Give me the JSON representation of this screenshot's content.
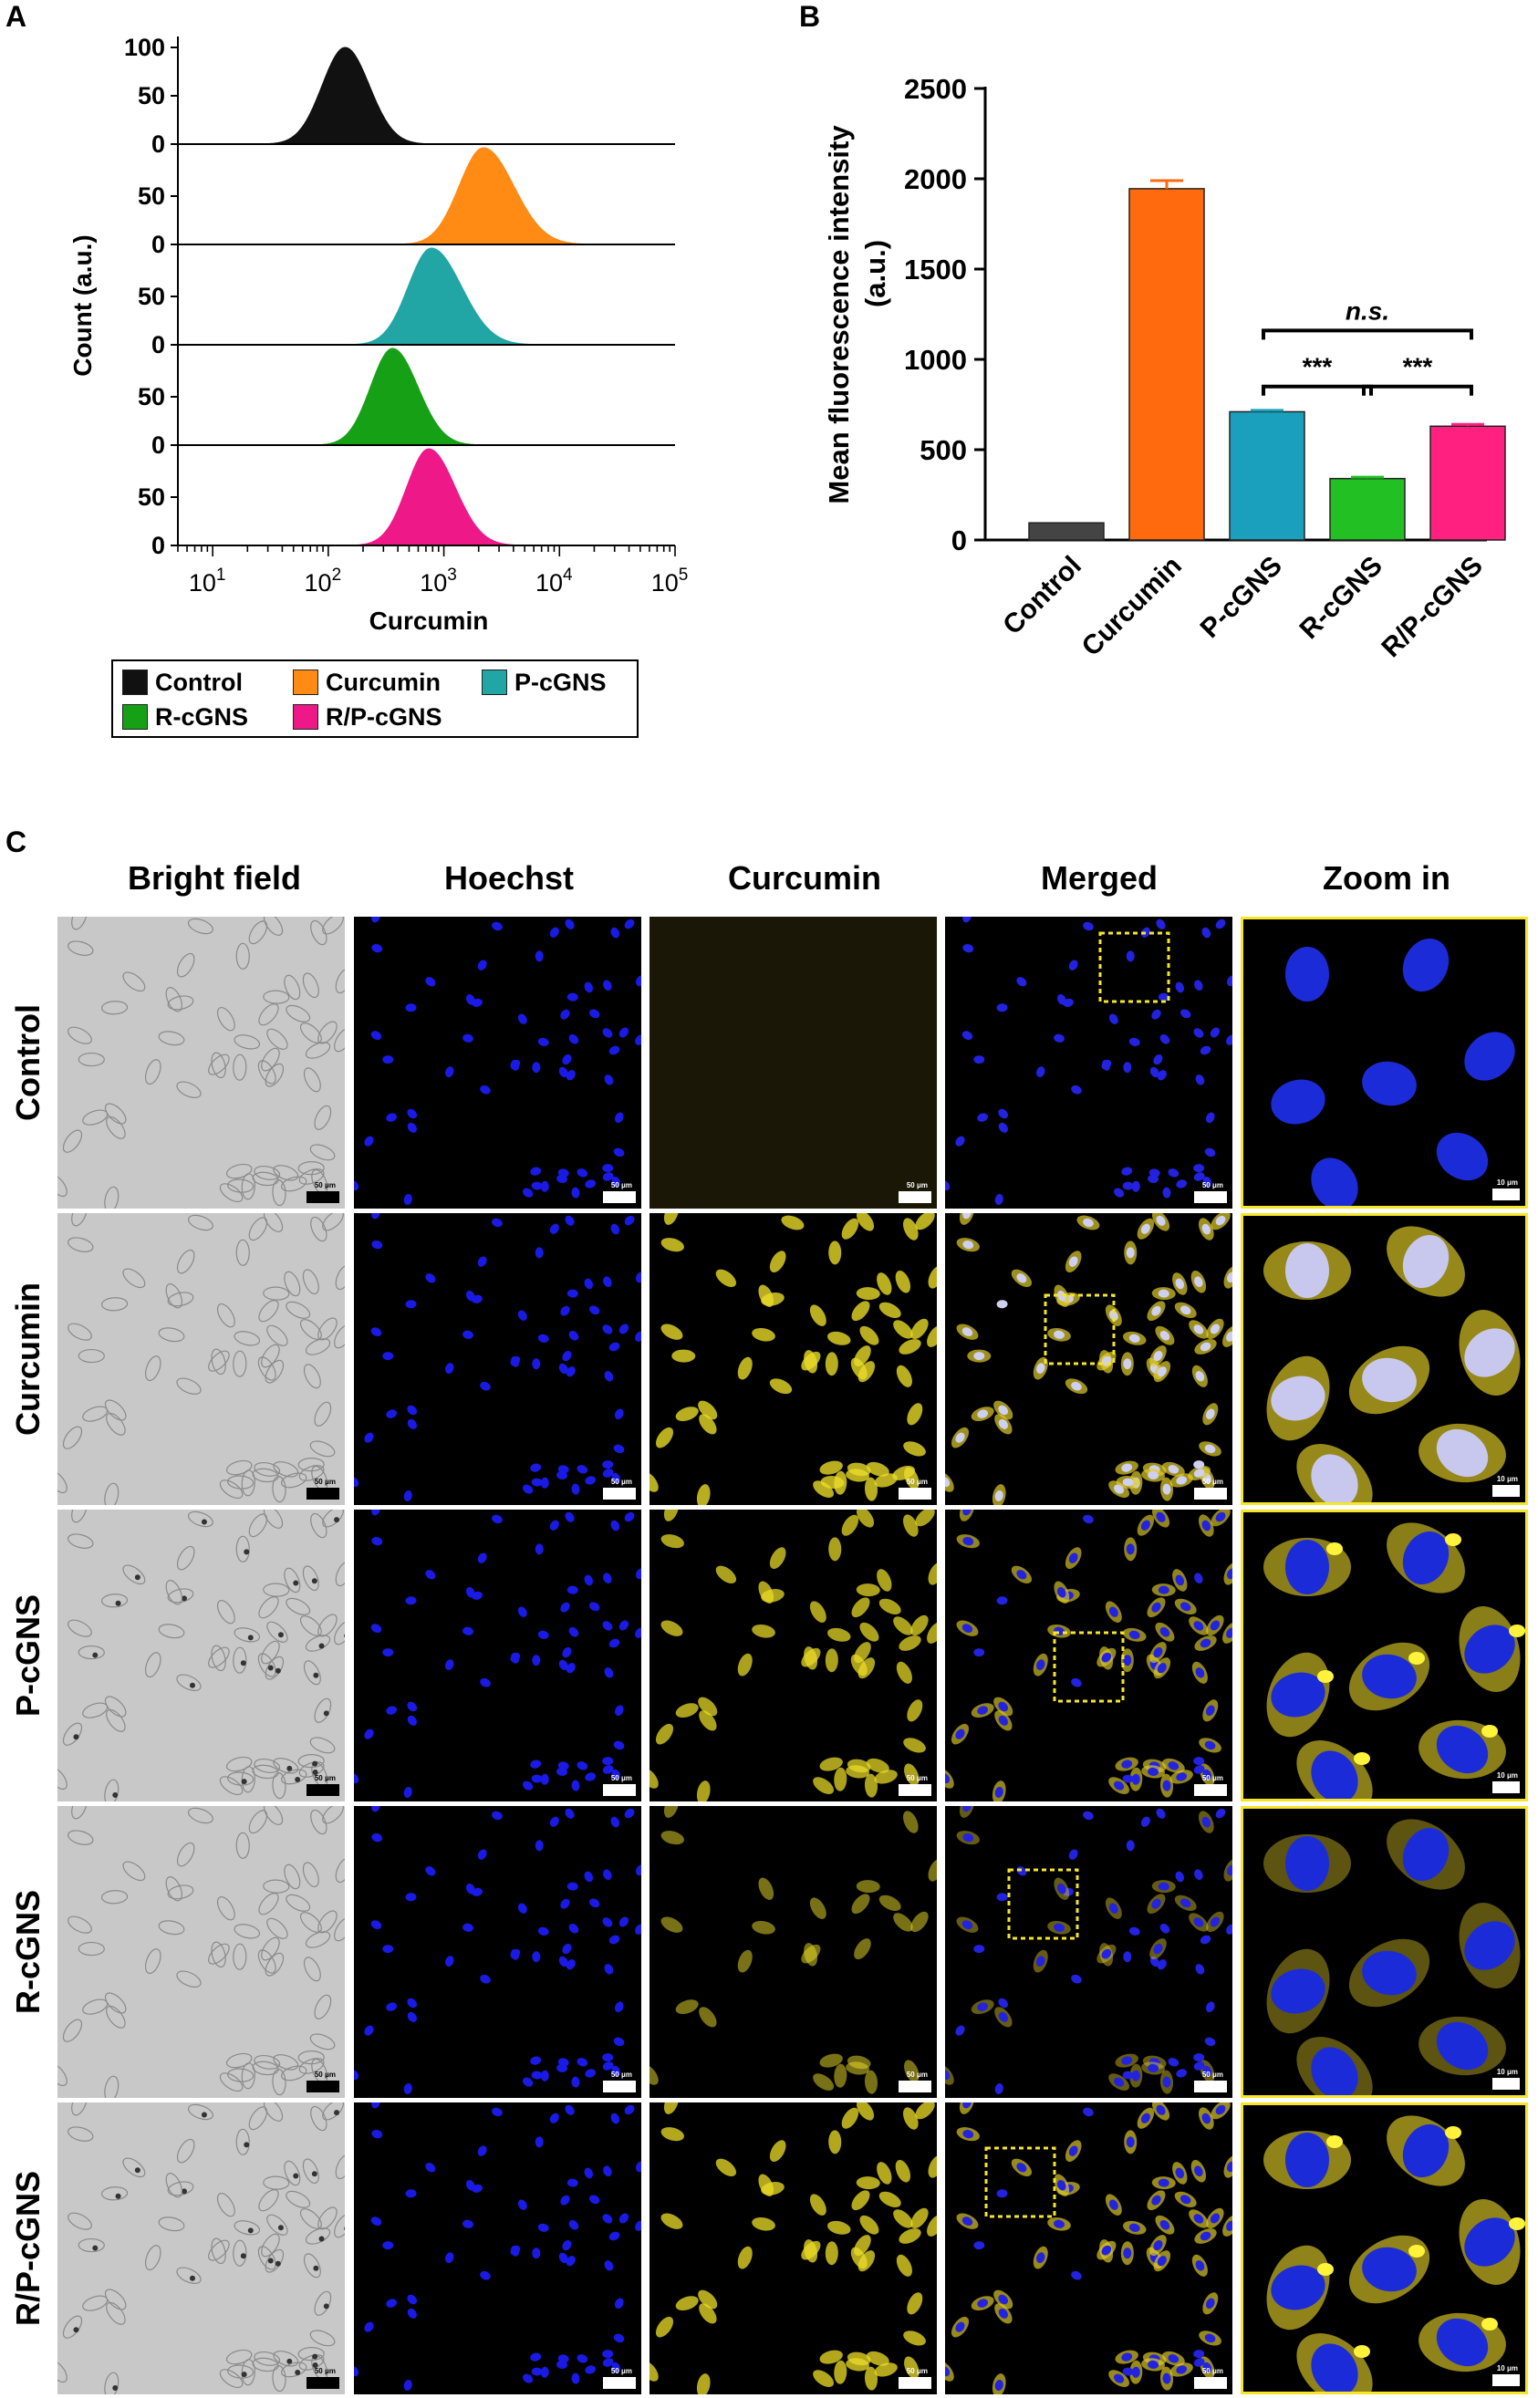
{
  "panels": {
    "a_label": "A",
    "b_label": "B",
    "c_label": "C"
  },
  "chart_data": [
    {
      "type": "area",
      "panel": "A",
      "xlabel": "Curcumin",
      "ylabel": "Count (a.u.)",
      "x_scale": "log",
      "xlim": [
        5,
        100000
      ],
      "x_tick_labels": [
        {
          "value": 10,
          "base": "10",
          "exp": "1"
        },
        {
          "value": 100,
          "base": "10",
          "exp": "2"
        },
        {
          "value": 1000,
          "base": "10",
          "exp": "3"
        },
        {
          "value": 10000,
          "base": "10",
          "exp": "4"
        },
        {
          "value": 100000,
          "base": "10",
          "exp": "5"
        }
      ],
      "y_tick_labels_top": [
        "100",
        "50",
        "0"
      ],
      "y_tick_labels": [
        "50",
        "0"
      ],
      "series": [
        {
          "name": "Control",
          "color": "#111111",
          "peak": 140,
          "log_sigma": 0.2,
          "skew": 1.05
        },
        {
          "name": "Curcumin",
          "color": "#ff8a14",
          "peak": 2200,
          "log_sigma": 0.21,
          "skew": 1.25
        },
        {
          "name": "P-cGNS",
          "color": "#22a5a5",
          "peak": 780,
          "log_sigma": 0.2,
          "skew": 1.3
        },
        {
          "name": "R-cGNS",
          "color": "#16a016",
          "peak": 360,
          "log_sigma": 0.19,
          "skew": 1.15
        },
        {
          "name": "R/P-cGNS",
          "color": "#ee1889",
          "peak": 740,
          "log_sigma": 0.19,
          "skew": 1.2
        }
      ],
      "legend": {
        "placement": "below"
      }
    },
    {
      "type": "bar",
      "panel": "B",
      "ylabel_line1": "Mean fluorescence intensity",
      "ylabel_line2": "(a.u.)",
      "ylim": [
        0,
        2500
      ],
      "y_ticks": [
        0,
        500,
        1000,
        1500,
        2000,
        2500
      ],
      "categories": [
        "Control",
        "Curcumin",
        "P-cGNS",
        "R-cGNS",
        "R/P-cGNS"
      ],
      "values": [
        95,
        1945,
        710,
        340,
        630
      ],
      "errors": [
        0,
        45,
        8,
        8,
        10
      ],
      "colors": [
        "#444444",
        "#ff6a0e",
        "#1aa0bc",
        "#22c022",
        "#ff2080"
      ],
      "significance": [
        {
          "from": 2,
          "to": 4,
          "label": "n.s.",
          "y": 1160,
          "italic": true
        },
        {
          "from": 2,
          "to": 3,
          "label": "***",
          "y": 850,
          "italic": false
        },
        {
          "from": 3,
          "to": 4,
          "label": "***",
          "y": 850,
          "italic": false
        }
      ]
    }
  ],
  "micrographs": {
    "columns": [
      "Bright field",
      "Hoechst",
      "Curcumin",
      "Merged",
      "Zoom in"
    ],
    "rows": [
      "Control",
      "Curcumin",
      "P-cGNS",
      "R-cGNS",
      "R/P-cGNS"
    ],
    "scale_bar_main": "50 μm",
    "scale_bar_zoom": "10 μm",
    "curcumin_level": [
      0.0,
      0.8,
      0.7,
      0.3,
      0.75
    ]
  }
}
